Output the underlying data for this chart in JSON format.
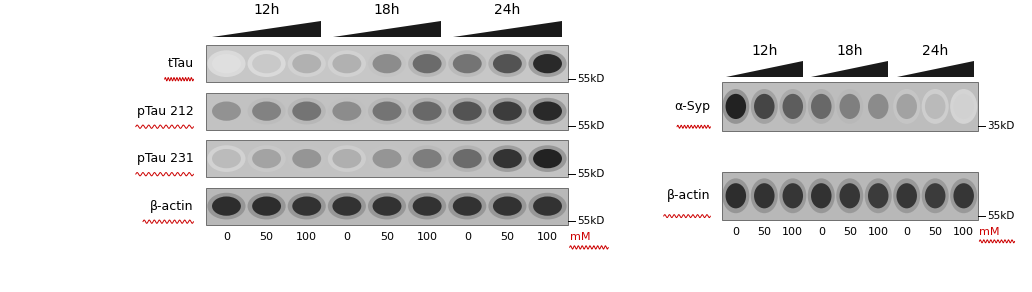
{
  "fig_width": 10.32,
  "fig_height": 2.92,
  "bg_color": "#ffffff",
  "left_panel": {
    "time_labels": [
      "12h",
      "18h",
      "24h"
    ],
    "conc_labels": [
      "0",
      "50",
      "100",
      "0",
      "50",
      "100",
      "0",
      "50",
      "100"
    ],
    "conc_unit": "mM",
    "row_labels": [
      "tTau",
      "pTau 212",
      "pTau 231",
      "β-actin"
    ],
    "size_labels": [
      "55kD",
      "55kD",
      "55kD",
      "55kD"
    ],
    "num_lanes": 9,
    "band_intensities": [
      [
        0.12,
        0.22,
        0.32,
        0.32,
        0.48,
        0.62,
        0.58,
        0.72,
        0.9
      ],
      [
        0.45,
        0.52,
        0.58,
        0.48,
        0.58,
        0.63,
        0.72,
        0.82,
        0.9
      ],
      [
        0.28,
        0.38,
        0.44,
        0.33,
        0.44,
        0.54,
        0.62,
        0.86,
        0.93
      ],
      [
        0.88,
        0.88,
        0.86,
        0.86,
        0.86,
        0.86,
        0.86,
        0.86,
        0.86
      ]
    ],
    "bg_grays": [
      0.78,
      0.76,
      0.76,
      0.72
    ]
  },
  "right_panel": {
    "time_labels": [
      "12h",
      "18h",
      "24h"
    ],
    "conc_labels": [
      "0",
      "50",
      "100",
      "0",
      "50",
      "100",
      "0",
      "50",
      "100"
    ],
    "conc_unit": "mM",
    "row_labels": [
      "α-Syp",
      "β-actin"
    ],
    "size_labels": [
      "35kD",
      "55kD"
    ],
    "num_lanes": 9,
    "band_intensities": [
      [
        0.93,
        0.78,
        0.68,
        0.63,
        0.53,
        0.48,
        0.38,
        0.28,
        0.18
      ],
      [
        0.88,
        0.86,
        0.84,
        0.86,
        0.84,
        0.82,
        0.84,
        0.82,
        0.84
      ]
    ],
    "bg_grays": [
      0.74,
      0.72
    ]
  },
  "red_color": "#cc0000",
  "font_size_time": 10,
  "font_size_label": 9,
  "font_size_conc": 8,
  "font_size_size": 7.5
}
